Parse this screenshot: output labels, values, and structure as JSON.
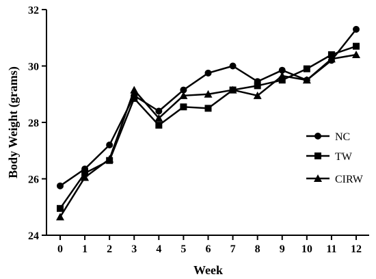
{
  "chart_data": {
    "type": "line",
    "xlabel": "Week",
    "ylabel": "Body Weight (grams)",
    "x": [
      0,
      1,
      2,
      3,
      4,
      5,
      6,
      7,
      8,
      9,
      10,
      11,
      12
    ],
    "x_ticks": [
      0,
      1,
      2,
      3,
      4,
      5,
      6,
      7,
      8,
      9,
      10,
      11,
      12
    ],
    "ylim": [
      24,
      32
    ],
    "y_ticks": [
      24,
      26,
      28,
      30,
      32
    ],
    "grid": false,
    "legend_position": "right",
    "series": [
      {
        "name": "NC",
        "marker": "circle",
        "values": [
          25.75,
          26.35,
          27.2,
          28.95,
          28.4,
          29.15,
          29.75,
          30.0,
          29.45,
          29.85,
          29.5,
          30.2,
          31.3
        ]
      },
      {
        "name": "TW",
        "marker": "square",
        "values": [
          24.95,
          26.2,
          26.65,
          28.85,
          27.9,
          28.55,
          28.5,
          29.15,
          29.3,
          29.5,
          29.9,
          30.4,
          30.7
        ]
      },
      {
        "name": "CIRW",
        "marker": "triangle",
        "values": [
          24.65,
          26.05,
          26.7,
          29.15,
          28.15,
          28.95,
          29.0,
          29.15,
          28.95,
          29.65,
          29.5,
          30.25,
          30.4
        ]
      }
    ]
  }
}
